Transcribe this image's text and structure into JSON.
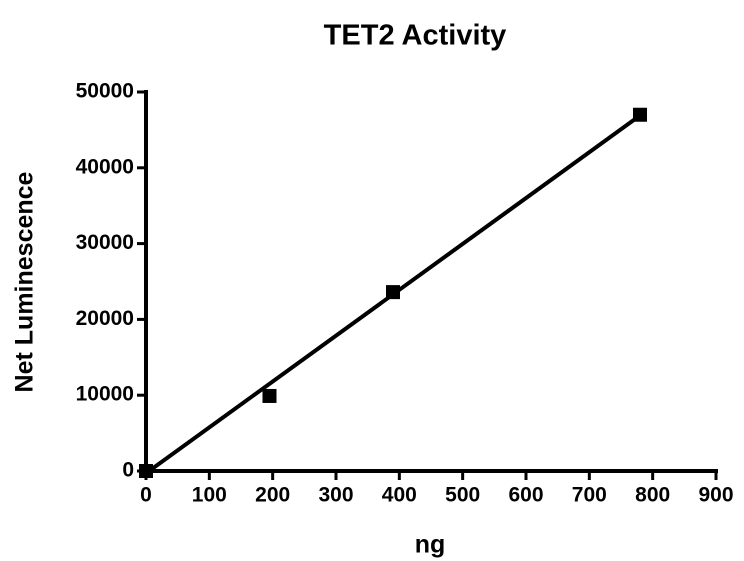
{
  "chart_data": {
    "type": "scatter",
    "title": "TET2 Activity",
    "x_label": "ng",
    "y_label": "Net Luminescence",
    "x": [
      0,
      195,
      390,
      780
    ],
    "values": [
      0,
      9900,
      23600,
      47000
    ],
    "color": "#000000",
    "fit": {
      "x": [
        0,
        780
      ],
      "values": [
        -300,
        46900
      ]
    },
    "xlim": [
      0,
      900
    ],
    "xticks": [
      0,
      100,
      200,
      300,
      400,
      500,
      600,
      700,
      800,
      900
    ],
    "ylim": [
      0,
      50000
    ],
    "yticks": [
      0,
      10000,
      20000,
      30000,
      40000,
      50000
    ]
  }
}
